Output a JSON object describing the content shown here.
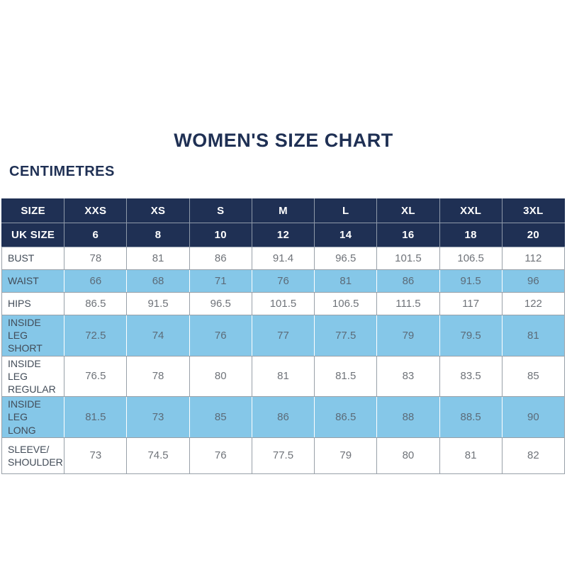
{
  "page": {
    "title": "WOMEN'S SIZE CHART",
    "unit_label": "CENTIMETRES"
  },
  "colors": {
    "navy": "#1f3054",
    "blue": "#85c7e8",
    "border": "#98a0a8",
    "hdr-border": "#8e99a9",
    "label": "#414b57",
    "num": "#6f7379",
    "num-blue": "#5c6b78"
  },
  "chart_data": {
    "type": "table",
    "title": "WOMEN'S SIZE CHART",
    "unit": "CENTIMETRES",
    "header_rows": [
      {
        "label": "SIZE",
        "values": [
          "XXS",
          "XS",
          "S",
          "M",
          "L",
          "XL",
          "XXL",
          "3XL"
        ]
      },
      {
        "label": "UK SIZE",
        "values": [
          "6",
          "8",
          "10",
          "12",
          "14",
          "16",
          "18",
          "20"
        ]
      }
    ],
    "rows": [
      {
        "label": "BUST",
        "highlight": false,
        "values": [
          "78",
          "81",
          "86",
          "91.4",
          "96.5",
          "101.5",
          "106.5",
          "112"
        ]
      },
      {
        "label": "WAIST",
        "highlight": true,
        "values": [
          "66",
          "68",
          "71",
          "76",
          "81",
          "86",
          "91.5",
          "96"
        ]
      },
      {
        "label": "HIPS",
        "highlight": false,
        "values": [
          "86.5",
          "91.5",
          "96.5",
          "101.5",
          "106.5",
          "111.5",
          "117",
          "122"
        ]
      },
      {
        "label": "INSIDE LEG\nSHORT",
        "highlight": true,
        "values": [
          "72.5",
          "74",
          "76",
          "77",
          "77.5",
          "79",
          "79.5",
          "81"
        ]
      },
      {
        "label": "INSIDE LEG\nREGULAR",
        "highlight": false,
        "values": [
          "76.5",
          "78",
          "80",
          "81",
          "81.5",
          "83",
          "83.5",
          "85"
        ]
      },
      {
        "label": "INSIDE LEG\nLONG",
        "highlight": true,
        "values": [
          "81.5",
          "73",
          "85",
          "86",
          "86.5",
          "88",
          "88.5",
          "90"
        ]
      },
      {
        "label": "SLEEVE/\nSHOULDER",
        "highlight": false,
        "values": [
          "73",
          "74.5",
          "76",
          "77.5",
          "79",
          "80",
          "81",
          "82"
        ]
      }
    ]
  }
}
